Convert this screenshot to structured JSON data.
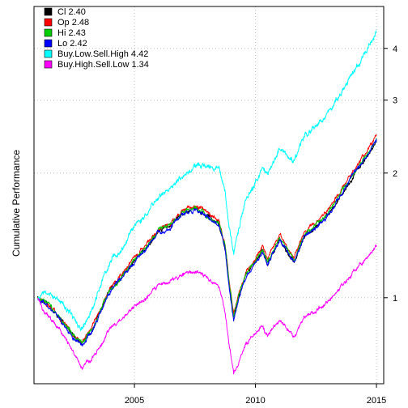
{
  "chart_data": {
    "type": "line",
    "title": "",
    "xlabel": "",
    "ylabel": "Cumulative Performance",
    "y_scale": "log",
    "xlim": [
      2000.85,
      2015.3
    ],
    "ylim": [
      0.62,
      5.05
    ],
    "x_ticks": [
      {
        "value": 2005,
        "label": "2005"
      },
      {
        "value": 2010,
        "label": "2010"
      },
      {
        "value": 2015,
        "label": "2015"
      }
    ],
    "y_ticks": [
      {
        "value": 1,
        "label": "1"
      },
      {
        "value": 2,
        "label": "2"
      },
      {
        "value": 3,
        "label": "3"
      },
      {
        "value": 4,
        "label": "4"
      }
    ],
    "grid": true,
    "legend_position": "top-left",
    "series": [
      {
        "name": "Cl 2.40",
        "color": "#000000",
        "points": [
          [
            2001.0,
            1.0
          ],
          [
            2001.3,
            0.98
          ],
          [
            2001.7,
            0.93
          ],
          [
            2002.0,
            0.88
          ],
          [
            2002.3,
            0.84
          ],
          [
            2002.6,
            0.8
          ],
          [
            2002.8,
            0.78
          ],
          [
            2003.0,
            0.8
          ],
          [
            2003.3,
            0.85
          ],
          [
            2003.6,
            0.93
          ],
          [
            2004.0,
            1.05
          ],
          [
            2004.5,
            1.13
          ],
          [
            2005.0,
            1.23
          ],
          [
            2005.5,
            1.32
          ],
          [
            2006.0,
            1.45
          ],
          [
            2006.5,
            1.49
          ],
          [
            2007.0,
            1.6
          ],
          [
            2007.5,
            1.64
          ],
          [
            2008.0,
            1.58
          ],
          [
            2008.5,
            1.5
          ],
          [
            2008.75,
            1.32
          ],
          [
            2008.9,
            1.1
          ],
          [
            2009.1,
            0.9
          ],
          [
            2009.3,
            1.0
          ],
          [
            2009.6,
            1.13
          ],
          [
            2010.0,
            1.22
          ],
          [
            2010.3,
            1.3
          ],
          [
            2010.5,
            1.21
          ],
          [
            2011.0,
            1.38
          ],
          [
            2011.6,
            1.22
          ],
          [
            2012.0,
            1.4
          ],
          [
            2012.5,
            1.48
          ],
          [
            2013.0,
            1.58
          ],
          [
            2013.5,
            1.75
          ],
          [
            2014.0,
            1.95
          ],
          [
            2014.5,
            2.15
          ],
          [
            2014.85,
            2.3
          ],
          [
            2015.0,
            2.4
          ]
        ]
      },
      {
        "name": "Op 2.48",
        "color": "#ff0000",
        "points": [
          [
            2001.0,
            1.0
          ],
          [
            2001.3,
            0.98
          ],
          [
            2001.7,
            0.93
          ],
          [
            2002.0,
            0.88
          ],
          [
            2002.3,
            0.84
          ],
          [
            2002.6,
            0.8
          ],
          [
            2002.8,
            0.78
          ],
          [
            2003.0,
            0.81
          ],
          [
            2003.3,
            0.86
          ],
          [
            2003.6,
            0.94
          ],
          [
            2004.0,
            1.06
          ],
          [
            2004.5,
            1.14
          ],
          [
            2005.0,
            1.25
          ],
          [
            2005.5,
            1.34
          ],
          [
            2006.0,
            1.47
          ],
          [
            2006.5,
            1.51
          ],
          [
            2007.0,
            1.63
          ],
          [
            2007.5,
            1.67
          ],
          [
            2008.0,
            1.61
          ],
          [
            2008.5,
            1.53
          ],
          [
            2008.75,
            1.34
          ],
          [
            2008.9,
            1.12
          ],
          [
            2009.1,
            0.91
          ],
          [
            2009.3,
            1.02
          ],
          [
            2009.6,
            1.15
          ],
          [
            2010.0,
            1.25
          ],
          [
            2010.3,
            1.33
          ],
          [
            2010.5,
            1.24
          ],
          [
            2011.0,
            1.42
          ],
          [
            2011.6,
            1.25
          ],
          [
            2012.0,
            1.44
          ],
          [
            2012.5,
            1.52
          ],
          [
            2013.0,
            1.63
          ],
          [
            2013.5,
            1.81
          ],
          [
            2014.0,
            2.01
          ],
          [
            2014.5,
            2.22
          ],
          [
            2014.85,
            2.38
          ],
          [
            2015.0,
            2.48
          ]
        ]
      },
      {
        "name": "Hi 2.43",
        "color": "#00cd00",
        "points": [
          [
            2001.0,
            1.0
          ],
          [
            2001.3,
            0.98
          ],
          [
            2001.7,
            0.93
          ],
          [
            2002.0,
            0.88
          ],
          [
            2002.3,
            0.84
          ],
          [
            2002.6,
            0.8
          ],
          [
            2002.8,
            0.78
          ],
          [
            2003.0,
            0.8
          ],
          [
            2003.3,
            0.85
          ],
          [
            2003.6,
            0.93
          ],
          [
            2004.0,
            1.05
          ],
          [
            2004.5,
            1.13
          ],
          [
            2005.0,
            1.24
          ],
          [
            2005.5,
            1.33
          ],
          [
            2006.0,
            1.46
          ],
          [
            2006.5,
            1.5
          ],
          [
            2007.0,
            1.61
          ],
          [
            2007.5,
            1.65
          ],
          [
            2008.0,
            1.59
          ],
          [
            2008.5,
            1.51
          ],
          [
            2008.75,
            1.33
          ],
          [
            2008.9,
            1.11
          ],
          [
            2009.1,
            0.9
          ],
          [
            2009.3,
            1.01
          ],
          [
            2009.6,
            1.14
          ],
          [
            2010.0,
            1.23
          ],
          [
            2010.3,
            1.31
          ],
          [
            2010.5,
            1.22
          ],
          [
            2011.0,
            1.4
          ],
          [
            2011.6,
            1.23
          ],
          [
            2012.0,
            1.42
          ],
          [
            2012.5,
            1.5
          ],
          [
            2013.0,
            1.6
          ],
          [
            2013.5,
            1.77
          ],
          [
            2014.0,
            1.97
          ],
          [
            2014.5,
            2.18
          ],
          [
            2014.85,
            2.33
          ],
          [
            2015.0,
            2.43
          ]
        ]
      },
      {
        "name": "Lo 2.42",
        "color": "#0000ff",
        "points": [
          [
            2001.0,
            1.0
          ],
          [
            2001.3,
            0.97
          ],
          [
            2001.7,
            0.92
          ],
          [
            2002.0,
            0.87
          ],
          [
            2002.3,
            0.83
          ],
          [
            2002.6,
            0.79
          ],
          [
            2002.8,
            0.77
          ],
          [
            2003.0,
            0.79
          ],
          [
            2003.3,
            0.84
          ],
          [
            2003.6,
            0.92
          ],
          [
            2004.0,
            1.04
          ],
          [
            2004.5,
            1.12
          ],
          [
            2005.0,
            1.22
          ],
          [
            2005.5,
            1.31
          ],
          [
            2006.0,
            1.44
          ],
          [
            2006.5,
            1.48
          ],
          [
            2007.0,
            1.59
          ],
          [
            2007.5,
            1.63
          ],
          [
            2008.0,
            1.57
          ],
          [
            2008.5,
            1.49
          ],
          [
            2008.75,
            1.31
          ],
          [
            2008.9,
            1.08
          ],
          [
            2009.1,
            0.88
          ],
          [
            2009.3,
            0.99
          ],
          [
            2009.6,
            1.12
          ],
          [
            2010.0,
            1.21
          ],
          [
            2010.3,
            1.29
          ],
          [
            2010.5,
            1.2
          ],
          [
            2011.0,
            1.38
          ],
          [
            2011.6,
            1.21
          ],
          [
            2012.0,
            1.4
          ],
          [
            2012.5,
            1.48
          ],
          [
            2013.0,
            1.58
          ],
          [
            2013.5,
            1.76
          ],
          [
            2014.0,
            1.96
          ],
          [
            2014.5,
            2.17
          ],
          [
            2014.85,
            2.32
          ],
          [
            2015.0,
            2.42
          ]
        ]
      },
      {
        "name": "Buy.Low.Sell.High 4.42",
        "color": "#00ffff",
        "points": [
          [
            2001.0,
            1.0
          ],
          [
            2001.3,
            1.03
          ],
          [
            2001.7,
            1.0
          ],
          [
            2002.0,
            0.97
          ],
          [
            2002.3,
            0.93
          ],
          [
            2002.6,
            0.87
          ],
          [
            2002.8,
            0.84
          ],
          [
            2003.0,
            0.88
          ],
          [
            2003.3,
            0.95
          ],
          [
            2003.6,
            1.08
          ],
          [
            2004.0,
            1.22
          ],
          [
            2004.5,
            1.32
          ],
          [
            2005.0,
            1.48
          ],
          [
            2005.5,
            1.6
          ],
          [
            2006.0,
            1.74
          ],
          [
            2006.5,
            1.84
          ],
          [
            2007.0,
            1.96
          ],
          [
            2007.5,
            2.08
          ],
          [
            2008.0,
            2.08
          ],
          [
            2008.5,
            2.05
          ],
          [
            2008.75,
            1.8
          ],
          [
            2008.9,
            1.5
          ],
          [
            2009.1,
            1.28
          ],
          [
            2009.3,
            1.46
          ],
          [
            2009.6,
            1.72
          ],
          [
            2010.0,
            1.9
          ],
          [
            2010.3,
            2.05
          ],
          [
            2010.5,
            1.98
          ],
          [
            2011.0,
            2.3
          ],
          [
            2011.6,
            2.15
          ],
          [
            2012.0,
            2.45
          ],
          [
            2012.5,
            2.6
          ],
          [
            2013.0,
            2.8
          ],
          [
            2013.5,
            3.1
          ],
          [
            2014.0,
            3.45
          ],
          [
            2014.5,
            3.9
          ],
          [
            2014.85,
            4.2
          ],
          [
            2015.0,
            4.42
          ]
        ]
      },
      {
        "name": "Buy.High.Sell.Low 1.34",
        "color": "#ff00ff",
        "points": [
          [
            2001.0,
            1.0
          ],
          [
            2001.3,
            0.92
          ],
          [
            2001.7,
            0.87
          ],
          [
            2002.0,
            0.82
          ],
          [
            2002.3,
            0.78
          ],
          [
            2002.6,
            0.72
          ],
          [
            2002.8,
            0.68
          ],
          [
            2003.0,
            0.69
          ],
          [
            2003.3,
            0.72
          ],
          [
            2003.6,
            0.77
          ],
          [
            2004.0,
            0.84
          ],
          [
            2004.5,
            0.89
          ],
          [
            2005.0,
            0.95
          ],
          [
            2005.5,
            1.0
          ],
          [
            2006.0,
            1.07
          ],
          [
            2006.5,
            1.1
          ],
          [
            2007.0,
            1.14
          ],
          [
            2007.5,
            1.16
          ],
          [
            2008.0,
            1.12
          ],
          [
            2008.5,
            1.06
          ],
          [
            2008.75,
            0.92
          ],
          [
            2008.9,
            0.78
          ],
          [
            2009.1,
            0.66
          ],
          [
            2009.3,
            0.7
          ],
          [
            2009.6,
            0.78
          ],
          [
            2010.0,
            0.82
          ],
          [
            2010.3,
            0.86
          ],
          [
            2010.5,
            0.81
          ],
          [
            2011.0,
            0.89
          ],
          [
            2011.6,
            0.8
          ],
          [
            2012.0,
            0.89
          ],
          [
            2012.5,
            0.93
          ],
          [
            2013.0,
            0.98
          ],
          [
            2013.5,
            1.06
          ],
          [
            2014.0,
            1.14
          ],
          [
            2014.5,
            1.24
          ],
          [
            2014.85,
            1.3
          ],
          [
            2015.0,
            1.34
          ]
        ]
      }
    ]
  }
}
